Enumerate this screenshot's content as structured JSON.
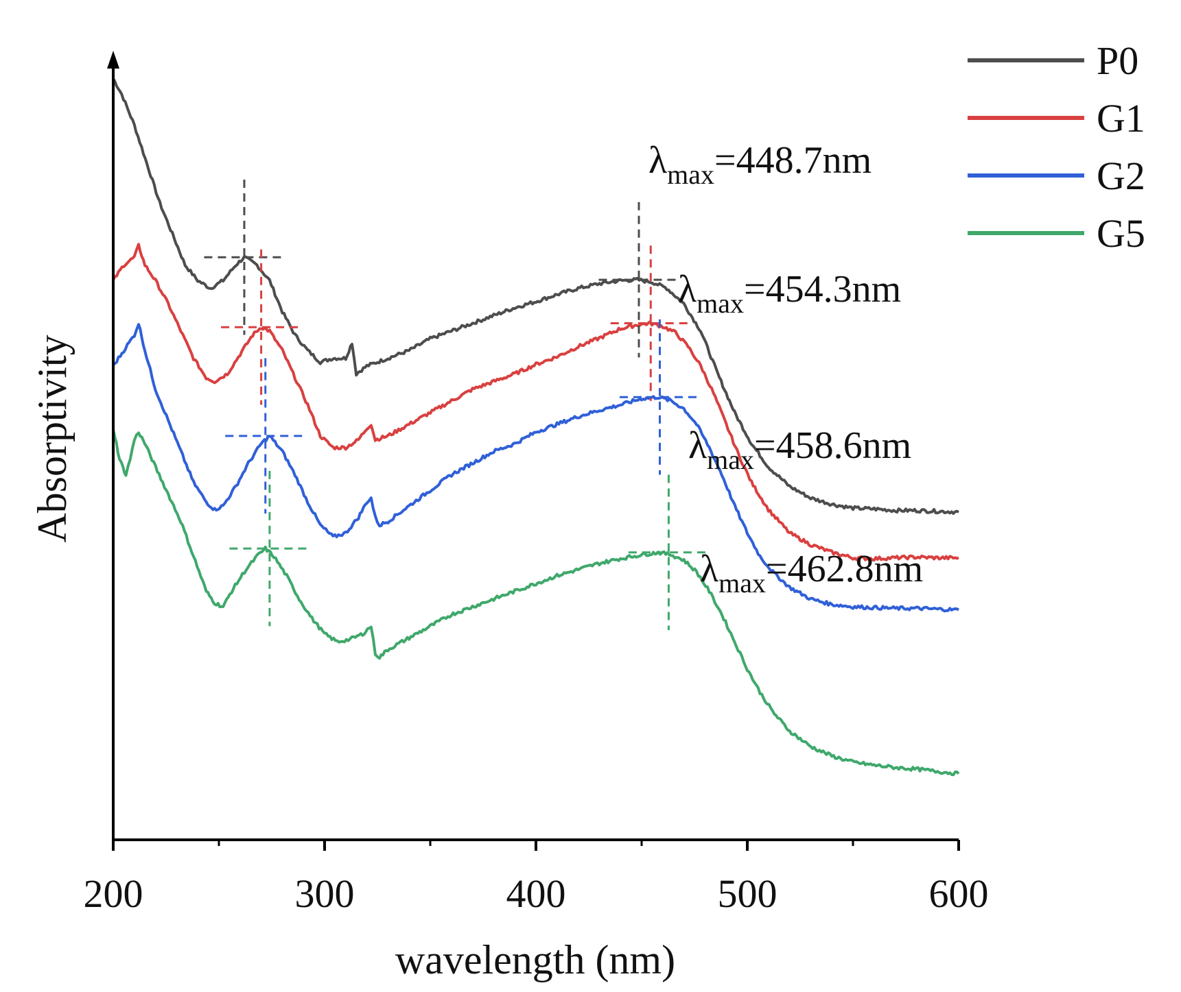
{
  "chart_data": {
    "type": "line",
    "title": "",
    "xlabel": "wavelength (nm)",
    "ylabel": "Absorptivity",
    "xlim": [
      200,
      600
    ],
    "ylim": [
      0,
      100
    ],
    "xticks": [
      200,
      300,
      400,
      500,
      600
    ],
    "xtick_labels": [
      "200",
      "300",
      "400",
      "500",
      "600"
    ],
    "yticks": [],
    "grid": false,
    "legend_position": "top-right",
    "series": [
      {
        "name": "P0",
        "color": "#4d4d4d",
        "x": [
          200,
          204,
          210,
          216,
          222,
          228,
          234,
          240,
          246,
          252,
          258,
          262,
          268,
          274,
          280,
          286,
          292,
          298,
          304,
          310,
          313,
          315,
          320,
          330,
          340,
          350,
          360,
          370,
          380,
          390,
          400,
          410,
          420,
          430,
          440,
          448,
          455,
          462,
          470,
          478,
          486,
          494,
          502,
          510,
          520,
          530,
          540,
          550,
          560,
          570,
          580,
          590,
          600
        ],
        "y": [
          98,
          96,
          92,
          87,
          82,
          78,
          74,
          72,
          71,
          72,
          74,
          75,
          74,
          72,
          68,
          65,
          63,
          61.5,
          62,
          62,
          64,
          60,
          61,
          62,
          63,
          64.5,
          65.5,
          66.5,
          67.5,
          68.5,
          69.3,
          70.2,
          71,
          71.6,
          72,
          72.1,
          71.8,
          71,
          69,
          65.5,
          60,
          55,
          51,
          48,
          45.5,
          44,
          43.2,
          42.7,
          42.6,
          42.4,
          42.4,
          42.3,
          42.2
        ]
      },
      {
        "name": "G1",
        "color": "#d94040",
        "x": [
          200,
          205,
          210,
          212,
          215,
          220,
          226,
          232,
          238,
          244,
          248,
          254,
          260,
          266,
          270,
          274,
          280,
          286,
          292,
          298,
          304,
          310,
          316,
          320,
          322,
          324,
          330,
          340,
          350,
          360,
          370,
          380,
          390,
          400,
          410,
          420,
          430,
          440,
          448,
          454,
          460,
          466,
          472,
          478,
          484,
          490,
          496,
          502,
          510,
          520,
          530,
          540,
          550,
          560,
          570,
          580,
          590,
          600
        ],
        "y": [
          72,
          74,
          75,
          76.5,
          74,
          72,
          69,
          65.5,
          62,
          59.5,
          59,
          60,
          62.5,
          65,
          66,
          65.5,
          63,
          59.5,
          56,
          52,
          50.5,
          50.5,
          51.5,
          53,
          53.5,
          51.5,
          52,
          53.5,
          55,
          56.5,
          58,
          59,
          60,
          61.2,
          62.2,
          63.5,
          64.6,
          65.8,
          66.3,
          66.5,
          66.1,
          65.3,
          63.5,
          61,
          57.5,
          53.5,
          49.5,
          46,
          42.5,
          39.5,
          38,
          37,
          36.3,
          36.2,
          36.3,
          36.4,
          36.3,
          36.3
        ]
      },
      {
        "name": "G2",
        "color": "#3060d8",
        "x": [
          200,
          205,
          210,
          212,
          215,
          220,
          226,
          232,
          238,
          244,
          248,
          252,
          258,
          264,
          270,
          274,
          280,
          286,
          292,
          298,
          304,
          310,
          316,
          320,
          322,
          324,
          326,
          330,
          340,
          350,
          360,
          370,
          380,
          390,
          400,
          410,
          420,
          430,
          440,
          450,
          458,
          464,
          470,
          476,
          482,
          488,
          494,
          500,
          506,
          512,
          520,
          530,
          540,
          550,
          560,
          570,
          580,
          590,
          600
        ],
        "y": [
          61,
          63,
          65,
          66.5,
          63,
          58,
          54,
          50,
          46,
          43.5,
          42.5,
          43,
          45.5,
          48.5,
          51,
          52,
          50,
          47,
          43.5,
          40.5,
          39,
          39.5,
          41.5,
          43.5,
          44,
          41.5,
          40.5,
          41,
          43,
          45,
          47,
          48.5,
          50,
          51,
          52.5,
          53.5,
          54.5,
          55.3,
          56,
          56.8,
          57,
          56.5,
          55.5,
          53.5,
          50.5,
          47,
          43,
          39.5,
          36.5,
          34.5,
          32.5,
          31,
          30.3,
          30,
          29.9,
          29.8,
          29.8,
          29.7,
          29.6
        ]
      },
      {
        "name": "G5",
        "color": "#3fa86b",
        "x": [
          200,
          203,
          206,
          208,
          210,
          212,
          215,
          220,
          226,
          232,
          238,
          244,
          248,
          252,
          256,
          262,
          268,
          272,
          276,
          282,
          288,
          294,
          300,
          306,
          312,
          318,
          322,
          324,
          326,
          330,
          340,
          350,
          360,
          370,
          380,
          390,
          400,
          410,
          420,
          430,
          440,
          450,
          458,
          464,
          470,
          476,
          482,
          488,
          494,
          500,
          506,
          512,
          520,
          530,
          540,
          550,
          560,
          570,
          580,
          590,
          600
        ],
        "y": [
          53,
          49,
          47,
          49,
          51.5,
          52.5,
          51,
          48,
          44.5,
          41,
          36.5,
          32,
          30.5,
          30,
          32,
          34.5,
          36.5,
          37.5,
          36.5,
          34,
          31,
          28.5,
          26.5,
          25.5,
          25.8,
          26.5,
          27.5,
          24,
          23.5,
          24.5,
          26,
          27.5,
          29,
          30,
          31,
          32,
          33,
          34,
          34.8,
          35.6,
          36.2,
          36.7,
          37,
          36.7,
          36,
          34.5,
          32,
          29,
          25.5,
          22,
          19,
          16.5,
          14,
          12,
          10.8,
          10,
          9.6,
          9.3,
          9.1,
          8.8,
          8.5
        ]
      }
    ],
    "markers": [
      {
        "series": "P0",
        "peak1_x": 262,
        "peak1_y": 75,
        "lambda_max": 448.7,
        "peak2_y": 72.1
      },
      {
        "series": "G1",
        "peak1_x": 270,
        "peak1_y": 66,
        "lambda_max": 454.3,
        "peak2_y": 66.5
      },
      {
        "series": "G2",
        "peak1_x": 272,
        "peak1_y": 52,
        "lambda_max": 458.6,
        "peak2_y": 57
      },
      {
        "series": "G5",
        "peak1_x": 274,
        "peak1_y": 37.5,
        "lambda_max": 462.8,
        "peak2_y": 37
      }
    ],
    "annotations": [
      {
        "series": "P0",
        "symbol": "λ",
        "subscript": "max",
        "value": "=448.7nm"
      },
      {
        "series": "G1",
        "symbol": "λ",
        "subscript": "max",
        "value": "=454.3nm"
      },
      {
        "series": "G2",
        "symbol": "λ",
        "subscript": "max",
        "value": "=458.6nm"
      },
      {
        "series": "G5",
        "symbol": "λ",
        "subscript": "max",
        "value": "=462.8nm"
      }
    ]
  }
}
